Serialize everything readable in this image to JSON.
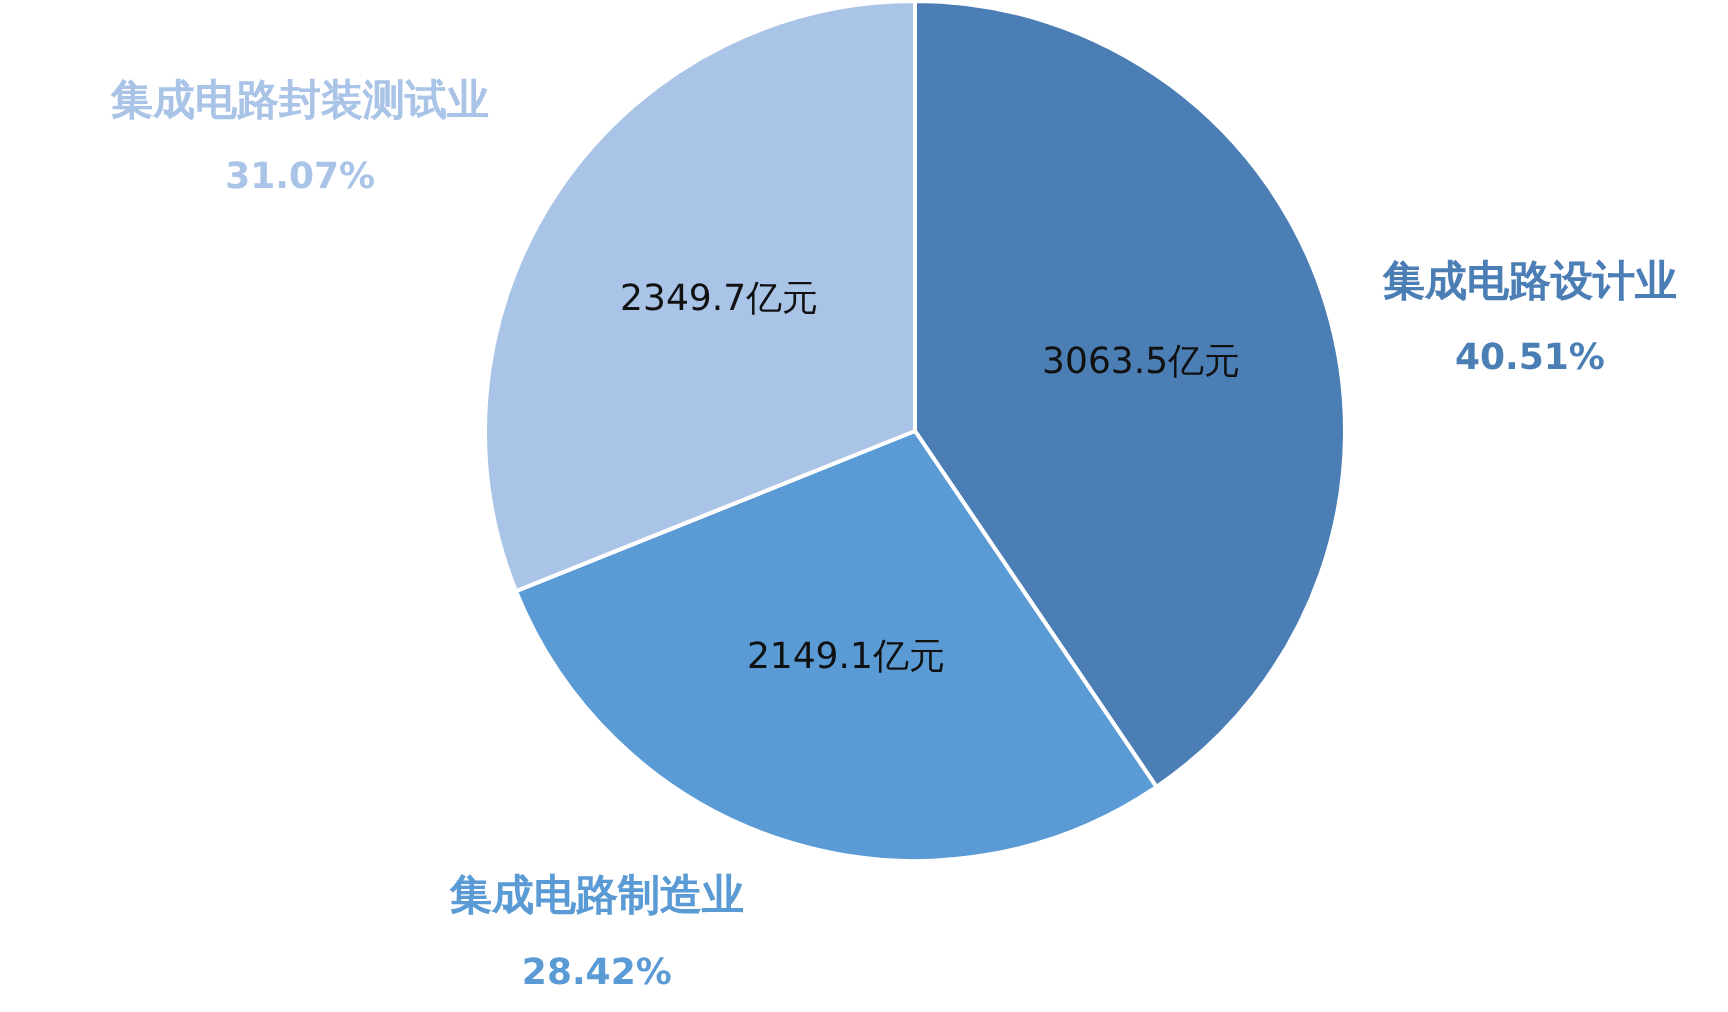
{
  "chart_data": {
    "type": "pie",
    "categories": [
      "集成电路设计业",
      "集成电路制造业",
      "集成电路封装测试业"
    ],
    "values": [
      3063.5,
      2149.1,
      2349.7
    ],
    "value_labels": [
      "3063.5亿元",
      "2149.1亿元",
      "2349.7亿元"
    ],
    "colors": [
      "#4a7eb5",
      "#5b9bd5",
      "#a9c4e6"
    ],
    "annotations": [
      {
        "text": "40.51%",
        "x": "集成电路设计业"
      },
      {
        "text": "28.42%",
        "x": "集成电路制造业"
      },
      {
        "text": "31.07%",
        "x": "集成电路封装测试业"
      }
    ]
  }
}
